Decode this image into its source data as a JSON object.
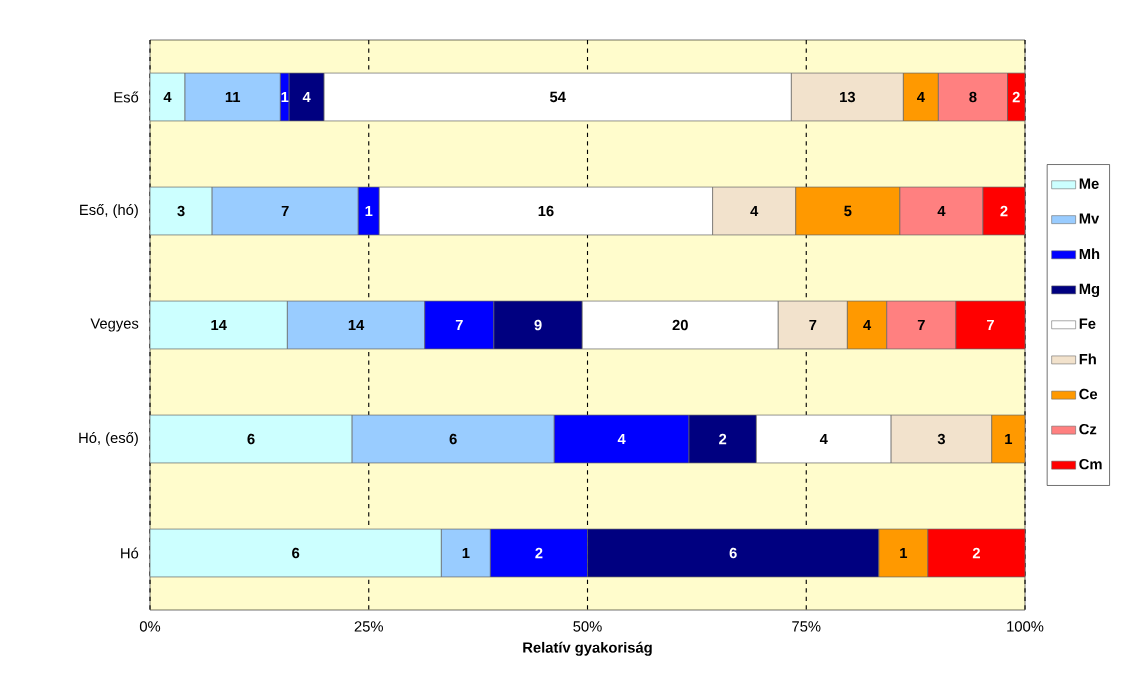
{
  "chart_data": {
    "type": "bar",
    "orientation": "horizontal",
    "stacked": true,
    "xlabel": "Relatív gyakoriság",
    "categories": [
      "Eső",
      "Eső, (hó)",
      "Vegyes",
      "Hó, (eső)",
      "Hó"
    ],
    "xlim": [
      0,
      100
    ],
    "xticks": [
      {
        "value": 0,
        "label": "0%"
      },
      {
        "value": 25,
        "label": "25%"
      },
      {
        "value": 50,
        "label": "50%"
      },
      {
        "value": 75,
        "label": "75%"
      },
      {
        "value": 100,
        "label": "100%"
      }
    ],
    "grid": "x",
    "legend": "right",
    "series": [
      {
        "name": "Me",
        "color": "#ccffff",
        "values": [
          4.0,
          7.1,
          15.7,
          23.1,
          33.3
        ]
      },
      {
        "name": "Mv",
        "color": "#99ccff",
        "values": [
          10.9,
          16.7,
          15.7,
          23.1,
          5.6
        ]
      },
      {
        "name": "Mh",
        "color": "#0000ff",
        "values": [
          1.0,
          2.4,
          7.9,
          15.4,
          11.1
        ]
      },
      {
        "name": "Mg",
        "color": "#000080",
        "values": [
          4.0,
          null,
          10.1,
          7.7,
          33.3
        ]
      },
      {
        "name": "Fe",
        "color": "#ffffff",
        "values": [
          53.4,
          38.1,
          22.4,
          15.4,
          null
        ]
      },
      {
        "name": "Fh",
        "color": "#f2e2cc",
        "values": [
          12.8,
          9.5,
          7.9,
          11.5,
          null
        ]
      },
      {
        "name": "Ce",
        "color": "#ff9900",
        "values": [
          4.0,
          11.9,
          4.5,
          3.8,
          5.6
        ]
      },
      {
        "name": "Cz",
        "color": "#ff8080",
        "values": [
          7.9,
          9.5,
          7.9,
          null,
          null
        ]
      },
      {
        "name": "Cm",
        "color": "#ff0000",
        "values": [
          2.0,
          4.8,
          7.9,
          null,
          11.1
        ]
      }
    ],
    "annotations": [
      "4",
      "11",
      "1",
      "4",
      "54",
      "13",
      "4",
      "8",
      "2",
      "3",
      "7",
      "1",
      "16",
      "4",
      "5",
      "4",
      "2",
      "14",
      "14",
      "7",
      "9",
      "20",
      "7",
      "4",
      "7",
      "7",
      "6",
      "6",
      "4",
      "2",
      "4",
      "3",
      "1",
      "6",
      "1",
      "2",
      "6",
      "1",
      "2"
    ]
  }
}
